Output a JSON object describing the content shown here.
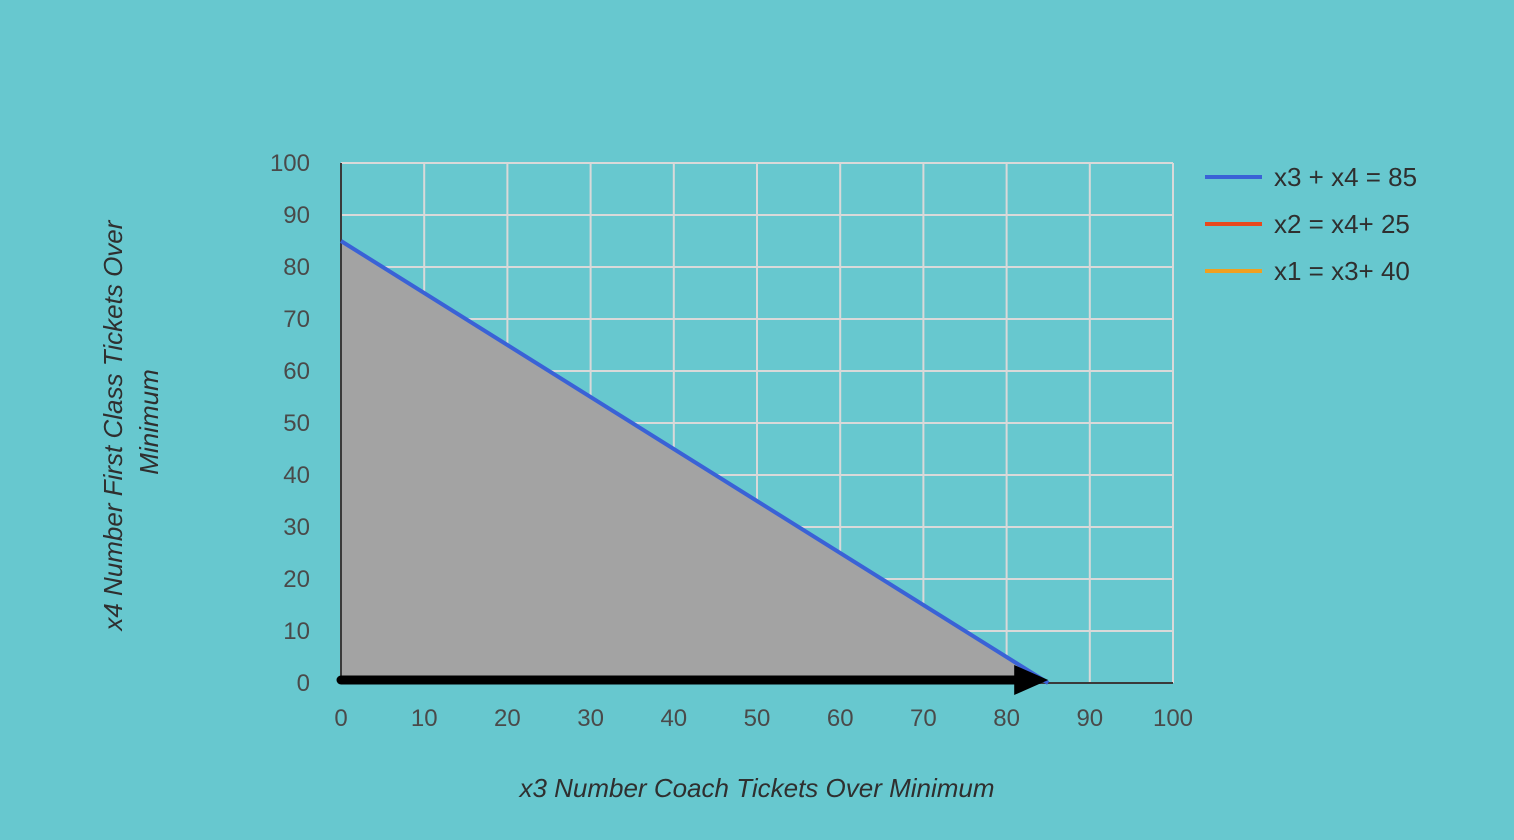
{
  "chart_data": {
    "type": "line",
    "xlabel": "x3 Number Coach Tickets Over Minimum",
    "ylabel_lines": [
      "x4 Number First Class Tickets Over",
      "Minimum"
    ],
    "xlim": [
      0,
      100
    ],
    "ylim": [
      0,
      100
    ],
    "x_ticks": [
      "0",
      "10",
      "20",
      "30",
      "40",
      "50",
      "60",
      "70",
      "80",
      "90",
      "100"
    ],
    "y_ticks": [
      "0",
      "10",
      "20",
      "30",
      "40",
      "50",
      "60",
      "70",
      "80",
      "90",
      "100"
    ],
    "grid": true,
    "legend_position": "right",
    "series": [
      {
        "name": "x3 + x4 = 85",
        "color": "#3a62d6",
        "points": [
          [
            0,
            85
          ],
          [
            85,
            0
          ]
        ]
      },
      {
        "name": "x2 = x4+ 25",
        "color": "#e8491d",
        "points": []
      },
      {
        "name": "x1 = x3+ 40",
        "color": "#f0a020",
        "points": []
      }
    ],
    "feasible_region": {
      "color": "#a3a3a3",
      "points": [
        [
          0,
          0
        ],
        [
          0,
          85
        ],
        [
          85,
          0
        ]
      ]
    },
    "arrow": {
      "color": "#000000",
      "from": [
        0,
        0
      ],
      "to": [
        85,
        0
      ]
    }
  }
}
